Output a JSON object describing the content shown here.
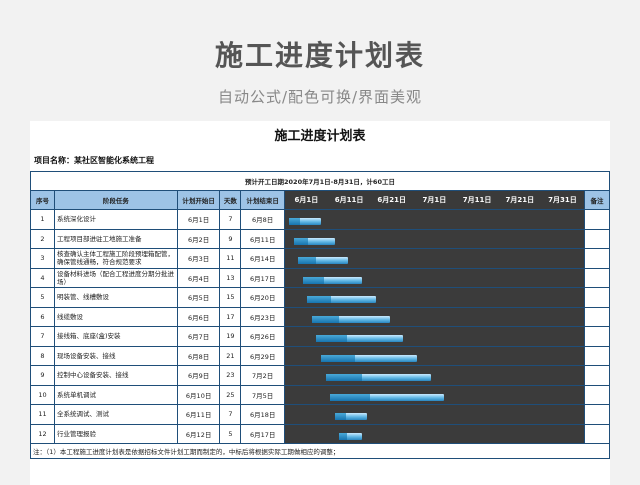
{
  "hero": {
    "title": "施工进度计划表",
    "subtitle": "自动公式/配色可换/界面美观"
  },
  "sheet": {
    "title": "施工进度计划表",
    "project_label": "项目名称：",
    "project_name": "某社区智能化系统工程",
    "plan_text": "预计开工日期2020年7月1日-8月31日，计60工日",
    "headers": {
      "no": "序号",
      "task": "阶段任务",
      "start": "计划开始日",
      "days": "天数",
      "end": "计划结束日",
      "note": "备注"
    },
    "date_labels": [
      "6月1日",
      "6月11日",
      "6月21日",
      "7月1日",
      "7月11日",
      "7月21日",
      "7月31日"
    ],
    "rows": [
      {
        "no": "1",
        "task": "系统深化设计",
        "start": "6月1日",
        "days": "7",
        "end": "6月8日"
      },
      {
        "no": "2",
        "task": "工程项目部进驻工地施工准备",
        "start": "6月2日",
        "days": "9",
        "end": "6月11日"
      },
      {
        "no": "3",
        "task": "核查确认主体工程施工阶段预埋箱配管，确保管线通畅，符合规范要求",
        "start": "6月3日",
        "days": "11",
        "end": "6月14日"
      },
      {
        "no": "4",
        "task": "设备材料进场（配合工程进度分期分批进场）",
        "start": "6月4日",
        "days": "13",
        "end": "6月17日"
      },
      {
        "no": "5",
        "task": "明装管、线槽敷设",
        "start": "6月5日",
        "days": "15",
        "end": "6月20日"
      },
      {
        "no": "6",
        "task": "线缆敷设",
        "start": "6月6日",
        "days": "17",
        "end": "6月23日"
      },
      {
        "no": "7",
        "task": "接线箱、底座(盒)安装",
        "start": "6月7日",
        "days": "19",
        "end": "6月26日"
      },
      {
        "no": "8",
        "task": "现场设备安装、接线",
        "start": "6月8日",
        "days": "21",
        "end": "6月29日"
      },
      {
        "no": "9",
        "task": "控制中心设备安装、接线",
        "start": "6月9日",
        "days": "23",
        "end": "7月2日"
      },
      {
        "no": "10",
        "task": "系统单机调试",
        "start": "6月10日",
        "days": "25",
        "end": "7月5日"
      },
      {
        "no": "11",
        "task": "全系统调试、测试",
        "start": "6月11日",
        "days": "7",
        "end": "6月18日"
      },
      {
        "no": "12",
        "task": "行业管理报验",
        "start": "6月12日",
        "days": "5",
        "end": "6月17日"
      }
    ],
    "gantt": {
      "axis_start_day": 1,
      "axis_span_days": 63,
      "bars": [
        {
          "start_day": 1,
          "days": 7
        },
        {
          "start_day": 2,
          "days": 9
        },
        {
          "start_day": 3,
          "days": 11
        },
        {
          "start_day": 4,
          "days": 13
        },
        {
          "start_day": 5,
          "days": 15
        },
        {
          "start_day": 6,
          "days": 17
        },
        {
          "start_day": 7,
          "days": 19
        },
        {
          "start_day": 8,
          "days": 21
        },
        {
          "start_day": 9,
          "days": 23
        },
        {
          "start_day": 10,
          "days": 25
        },
        {
          "start_day": 11,
          "days": 7
        },
        {
          "start_day": 12,
          "days": 5
        }
      ]
    },
    "note": "注：（1）本工程施工进度计划表是依据招标文件计划工期而制定的，中标后将根据实际工期做相应的调整；"
  },
  "colors": {
    "header_blue": "#9dc3e6",
    "border": "#1f4e79",
    "gantt_bg": "#3a3a3a",
    "bar": "#5fb6e3"
  }
}
